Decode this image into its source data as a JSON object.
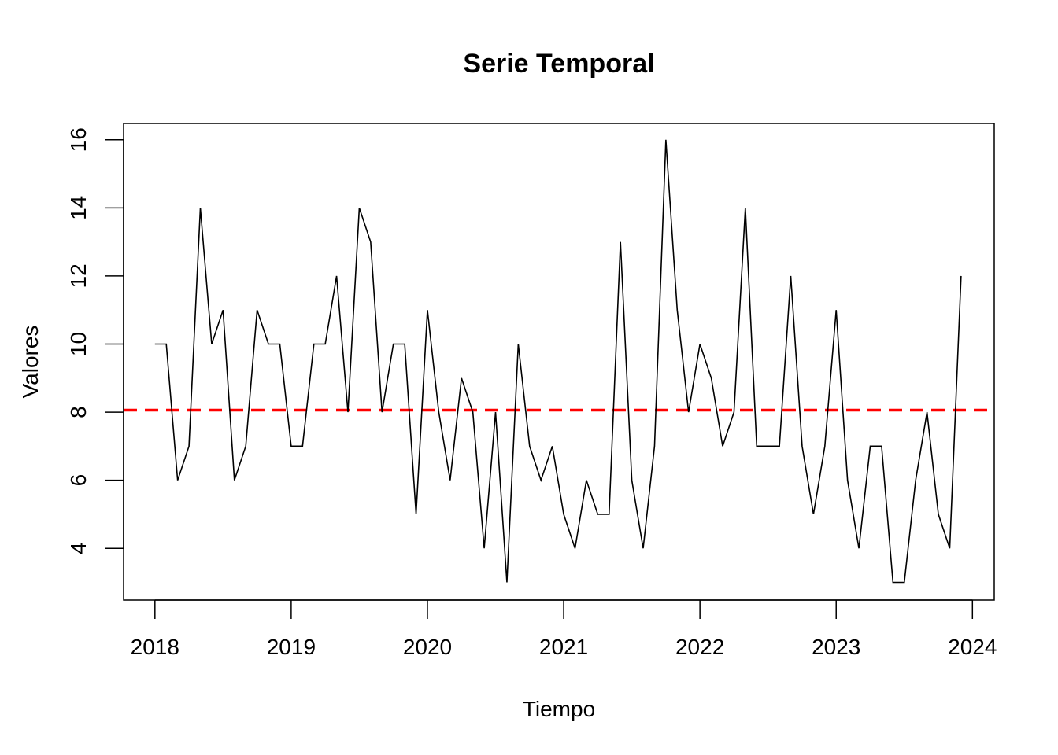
{
  "chart_data": {
    "type": "line",
    "title": "Serie Temporal",
    "xlabel": "Tiempo",
    "ylabel": "Valores",
    "xlim": [
      2017.77,
      2024.16
    ],
    "ylim": [
      2.48,
      16.48
    ],
    "x_ticks": [
      2018,
      2019,
      2020,
      2021,
      2022,
      2023,
      2024
    ],
    "x_tick_labels": [
      "2018",
      "2019",
      "2020",
      "2021",
      "2022",
      "2023",
      "2024"
    ],
    "y_ticks": [
      4,
      6,
      8,
      10,
      12,
      14,
      16
    ],
    "y_tick_labels": [
      "4",
      "6",
      "8",
      "10",
      "12",
      "14",
      "16"
    ],
    "series": [
      {
        "start": 2018,
        "frequency": 12,
        "color": "#000000",
        "values": [
          10,
          10,
          6,
          7,
          14,
          10,
          11,
          6,
          7,
          11,
          10,
          10,
          7,
          7,
          10,
          10,
          12,
          8,
          14,
          13,
          8,
          10,
          10,
          5,
          11,
          8,
          6,
          9,
          8,
          4,
          8,
          3,
          10,
          7,
          6,
          7,
          5,
          4,
          6,
          5,
          5,
          13,
          6,
          4,
          7,
          16,
          11,
          8,
          10,
          9,
          7,
          8,
          14,
          7,
          7,
          7,
          12,
          7,
          5,
          7,
          11,
          6,
          4,
          7,
          7,
          3,
          3,
          6,
          8,
          5,
          4,
          12
        ]
      }
    ],
    "reference_line": {
      "value": 8.06,
      "color": "#ff0000",
      "style": "dashed"
    },
    "grid": false,
    "legend": "none"
  }
}
